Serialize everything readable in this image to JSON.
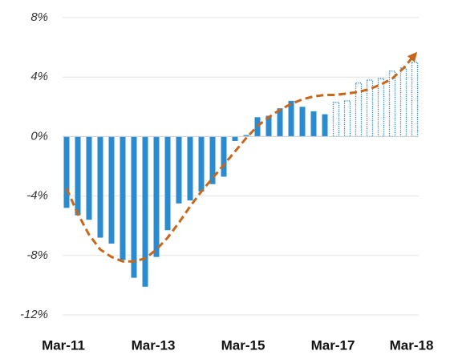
{
  "chart_data": {
    "type": "bar",
    "categories": [
      "Mar-11",
      null,
      null,
      null,
      null,
      null,
      null,
      null,
      "Mar-13",
      null,
      null,
      null,
      null,
      null,
      null,
      null,
      "Mar-15",
      null,
      null,
      null,
      null,
      null,
      null,
      null,
      "Mar-17",
      null,
      null,
      null,
      null,
      null,
      null,
      "Mar-18"
    ],
    "series": [
      {
        "color": "#2b8bcf",
        "style": "solid",
        "values": [
          -4.8,
          -5.3,
          -5.6,
          -6.8,
          -7.2,
          -8.3,
          -9.5,
          -10.1,
          -8.1,
          -6.3,
          -4.5,
          -4.3,
          -3.7,
          -3.2,
          -2.7,
          -0.3,
          0.1,
          1.3,
          1.4,
          1.9,
          2.4,
          2.0,
          1.7,
          1.5,
          null,
          null,
          null,
          null,
          null,
          null,
          null,
          null
        ]
      },
      {
        "color": "#2b8bcf",
        "style": "dotted",
        "values": [
          null,
          null,
          null,
          null,
          null,
          null,
          null,
          null,
          null,
          null,
          null,
          null,
          null,
          null,
          null,
          null,
          null,
          null,
          null,
          null,
          null,
          null,
          null,
          null,
          2.3,
          2.4,
          3.6,
          3.8,
          3.9,
          4.4,
          4.6,
          5.0
        ]
      },
      {
        "color": "#c8661a",
        "style": "dashed-line",
        "values": [
          -3.5,
          -5.2,
          -6.6,
          -7.6,
          -8.1,
          -8.4,
          -8.4,
          -8.2,
          -7.6,
          -6.8,
          -5.8,
          -4.7,
          -3.7,
          -2.8,
          -1.9,
          -1.0,
          -0.1,
          0.7,
          1.3,
          1.8,
          2.2,
          2.5,
          2.7,
          2.8,
          2.8,
          2.9,
          3.0,
          3.2,
          3.5,
          3.9,
          4.6,
          5.5
        ]
      }
    ],
    "ylim": [
      -12,
      8
    ],
    "yticks": [
      {
        "value": 8,
        "label": "8%"
      },
      {
        "value": 4,
        "label": "4%"
      },
      {
        "value": 0,
        "label": "0%"
      },
      {
        "value": -4,
        "label": "-4%"
      },
      {
        "value": -8,
        "label": "-8%"
      },
      {
        "value": -12,
        "label": "-12%"
      }
    ],
    "grid": true
  }
}
